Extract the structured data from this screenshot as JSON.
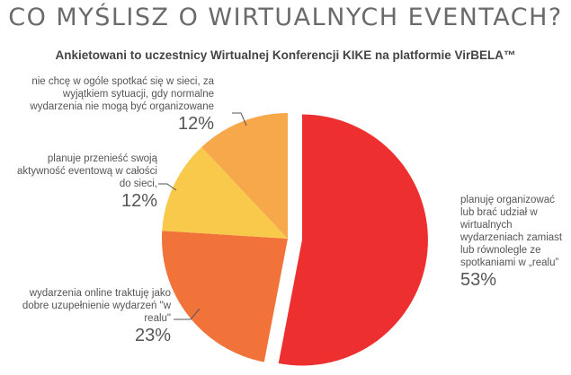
{
  "chart_data": {
    "type": "pie",
    "title": "CO MYŚLISZ O WIRTUALNYCH EVENTACH?",
    "subtitle": "Ankietowani to uczestnicy Wirtualnej Konferencji KIKE na platformie VirBELA™",
    "slices": [
      {
        "label": "planuję organizować lub brać udział w wirtualnych wydarzeniach zamiast lub równolegle ze spotkaniami w „realu”",
        "value": 53,
        "value_label": "53%",
        "color": "#ee2f2f",
        "exploded": true
      },
      {
        "label": "wydarzenia online traktuję jako dobre uzupełnienie wydarzeń \"w realu\"",
        "value": 23,
        "value_label": "23%",
        "color": "#f2733a"
      },
      {
        "label": "planuje przenieść swoją aktywność eventową w całości do sieci,",
        "value": 12,
        "value_label": "12%",
        "color": "#f9c94b"
      },
      {
        "label": "nie chcę w ogóle spotkać się w sieci, za wyjątkiem sytuacji, gdy normalne wydarzenia nie mogą być organizowane",
        "value": 12,
        "value_label": "12%",
        "color": "#f6a84a"
      }
    ]
  }
}
